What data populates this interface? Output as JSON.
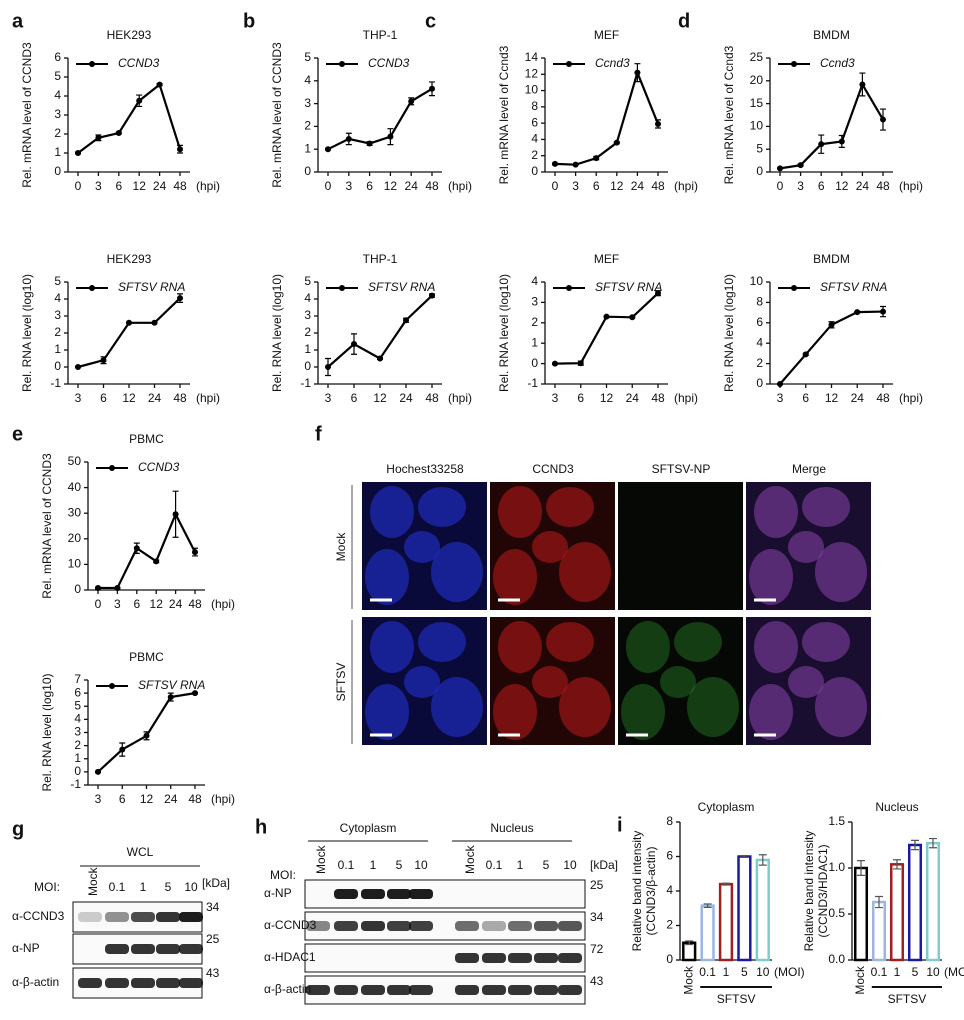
{
  "panel_labels": [
    "a",
    "b",
    "c",
    "d",
    "e",
    "f",
    "g",
    "h",
    "i"
  ],
  "chart_data": [
    {
      "type": "line",
      "title": "HEK293",
      "ylabel": "Rel. mRNA level of CCND3",
      "xlabel": "(hpi)",
      "categories": [
        "0",
        "3",
        "6",
        "12",
        "24",
        "48"
      ],
      "series": [
        {
          "name": "CCND3",
          "color": "#000000",
          "values": [
            1,
            1.8,
            2.05,
            3.75,
            4.6,
            1.2
          ],
          "errors": [
            0.05,
            0.15,
            0.05,
            0.3,
            0.05,
            0.2
          ]
        }
      ],
      "ylim": [
        0,
        6
      ],
      "yticks": [
        0,
        1,
        2,
        3,
        4,
        5,
        6
      ]
    },
    {
      "type": "line",
      "title": "HEK293",
      "ylabel": "Rel. RNA level (log10)",
      "xlabel": "(hpi)",
      "categories": [
        "3",
        "6",
        "12",
        "24",
        "48"
      ],
      "series": [
        {
          "name": "SFTSV RNA",
          "color": "#000000",
          "values": [
            0,
            0.4,
            2.6,
            2.6,
            4.05
          ],
          "errors": [
            0.03,
            0.2,
            0.03,
            0.03,
            0.25
          ]
        }
      ],
      "ylim": [
        -1,
        5
      ],
      "yticks": [
        -1,
        0,
        1,
        2,
        3,
        4,
        5
      ]
    },
    {
      "type": "line",
      "title": "THP-1",
      "ylabel": "Rel. mRNA level of CCND3",
      "xlabel": "(hpi)",
      "categories": [
        "0",
        "3",
        "6",
        "12",
        "24",
        "48"
      ],
      "series": [
        {
          "name": "CCND3",
          "color": "#000000",
          "values": [
            1,
            1.45,
            1.25,
            1.55,
            3.1,
            3.65
          ],
          "errors": [
            0.03,
            0.25,
            0.08,
            0.35,
            0.15,
            0.3
          ]
        }
      ],
      "ylim": [
        0,
        5
      ],
      "yticks": [
        0,
        1,
        2,
        3,
        4,
        5
      ]
    },
    {
      "type": "line",
      "title": "THP-1",
      "ylabel": "Rel. RNA level (log10)",
      "xlabel": "(hpi)",
      "categories": [
        "3",
        "6",
        "12",
        "24",
        "48"
      ],
      "series": [
        {
          "name": "SFTSV RNA",
          "color": "#000000",
          "values": [
            0,
            1.35,
            0.5,
            2.75,
            4.2
          ],
          "errors": [
            0.5,
            0.6,
            0.05,
            0.12,
            0.1
          ]
        }
      ],
      "ylim": [
        -1,
        5
      ],
      "yticks": [
        -1,
        0,
        1,
        2,
        3,
        4,
        5
      ]
    },
    {
      "type": "line",
      "title": "MEF",
      "ylabel": "Rel. mRNA level of Ccnd3",
      "xlabel": "(hpi)",
      "categories": [
        "0",
        "3",
        "6",
        "12",
        "24",
        "48"
      ],
      "series": [
        {
          "name": "Ccnd3",
          "color": "#000000",
          "values": [
            1,
            0.9,
            1.7,
            3.6,
            12.2,
            5.9
          ],
          "errors": [
            0.1,
            0.05,
            0.2,
            0.1,
            1.1,
            0.5
          ]
        }
      ],
      "ylim": [
        0,
        14
      ],
      "yticks": [
        0,
        2,
        4,
        6,
        8,
        10,
        12,
        14
      ]
    },
    {
      "type": "line",
      "title": "MEF",
      "ylabel": "Rel. RNA level (log10)",
      "xlabel": "(hpi)",
      "categories": [
        "3",
        "6",
        "12",
        "24",
        "48"
      ],
      "series": [
        {
          "name": "SFTSV RNA",
          "color": "#000000",
          "values": [
            0,
            0.02,
            2.3,
            2.27,
            3.45
          ],
          "errors": [
            0.02,
            0.1,
            0.02,
            0.02,
            0.12
          ]
        }
      ],
      "ylim": [
        -1,
        4
      ],
      "yticks": [
        -1,
        0,
        1,
        2,
        3,
        4
      ]
    },
    {
      "type": "line",
      "title": "BMDM",
      "ylabel": "Rel. mRNA level of Ccnd3",
      "xlabel": "(hpi)",
      "categories": [
        "0",
        "3",
        "6",
        "12",
        "24",
        "48"
      ],
      "series": [
        {
          "name": "Ccnd3",
          "color": "#000000",
          "values": [
            0.8,
            1.5,
            6.1,
            6.7,
            19.2,
            11.5
          ],
          "errors": [
            0.1,
            0.2,
            2,
            1.3,
            2.5,
            2.3
          ]
        }
      ],
      "ylim": [
        0,
        25
      ],
      "yticks": [
        0,
        5,
        10,
        15,
        20,
        25
      ]
    },
    {
      "type": "line",
      "title": "BMDM",
      "ylabel": "Rel. RNA level (log10)",
      "xlabel": "(hpi)",
      "categories": [
        "3",
        "6",
        "12",
        "24",
        "48"
      ],
      "series": [
        {
          "name": "SFTSV RNA",
          "color": "#000000",
          "values": [
            0,
            2.9,
            5.8,
            7.05,
            7.1
          ],
          "errors": [
            0.05,
            0.1,
            0.3,
            0.05,
            0.5
          ]
        }
      ],
      "ylim": [
        0,
        10
      ],
      "yticks": [
        0,
        2,
        4,
        6,
        8,
        10
      ]
    },
    {
      "type": "line",
      "title": "PBMC",
      "ylabel": "Rel. mRNA level of CCND3",
      "xlabel": "(hpi)",
      "categories": [
        "0",
        "3",
        "6",
        "12",
        "24",
        "48"
      ],
      "series": [
        {
          "name": "CCND3",
          "color": "#000000",
          "values": [
            0.8,
            0.8,
            16.3,
            11.2,
            29.6,
            14.8
          ],
          "errors": [
            0.3,
            0.3,
            2,
            0.5,
            9,
            1.5
          ]
        }
      ],
      "ylim": [
        0,
        50
      ],
      "yticks": [
        0,
        10,
        20,
        30,
        40,
        50
      ]
    },
    {
      "type": "line",
      "title": "PBMC",
      "ylabel": "Rel. RNA level (log10)",
      "xlabel": "(hpi)",
      "categories": [
        "3",
        "6",
        "12",
        "24",
        "48"
      ],
      "series": [
        {
          "name": "SFTSV RNA",
          "color": "#000000",
          "values": [
            0,
            1.7,
            2.75,
            5.7,
            6.0
          ],
          "errors": [
            0.05,
            0.5,
            0.3,
            0.3,
            0.05
          ]
        }
      ],
      "ylim": [
        -1,
        7
      ],
      "yticks": [
        -1,
        0,
        1,
        2,
        3,
        4,
        5,
        6,
        7
      ]
    },
    {
      "type": "bar",
      "title": "Cytoplasm",
      "ylabel": [
        "Relative band intensity",
        "(CCND3/β-actin)"
      ],
      "xlabel": "(MOI)",
      "group_label": "SFTSV",
      "categories": [
        "Mock",
        "0.1",
        "1",
        "5",
        "10"
      ],
      "values": [
        1,
        3.15,
        4.4,
        6.0,
        5.8
      ],
      "errors": [
        0.1,
        0.1,
        0.05,
        0.05,
        0.3
      ],
      "colors": [
        "#000000",
        "#9bb7e0",
        "#a02020",
        "#1a1aa0",
        "#80cccc"
      ],
      "ylim": [
        0,
        8
      ],
      "yticks": [
        0,
        2,
        4,
        6,
        8
      ]
    },
    {
      "type": "bar",
      "title": "Nucleus",
      "ylabel": [
        "Relative band intensity",
        "(CCND3/HDAC1)"
      ],
      "xlabel": "(MO",
      "group_label": "SFTSV",
      "categories": [
        "Mock",
        "0.1",
        "1",
        "5",
        "10"
      ],
      "values": [
        1,
        0.63,
        1.04,
        1.25,
        1.27
      ],
      "errors": [
        0.08,
        0.06,
        0.05,
        0.05,
        0.05
      ],
      "colors": [
        "#000000",
        "#9bb7e0",
        "#a02020",
        "#1a1aa0",
        "#80cccc"
      ],
      "ylim": [
        0,
        1.5
      ],
      "yticks": [
        {
          "value": 0,
          "label": "0.0"
        },
        0.5,
        {
          "value": 1,
          "label": "1.0"
        },
        1.5
      ]
    }
  ],
  "microscopy": {
    "columns": [
      "Hochest33258",
      "CCND3",
      "SFTSV-NP",
      "Merge"
    ],
    "rows": [
      "Mock",
      "SFTSV"
    ]
  },
  "blot_g": {
    "title": "WCL",
    "moi_label": "MOI:",
    "kda_label": "[kDa]",
    "lanes": [
      "Mock",
      "0.1",
      "1",
      "5",
      "10"
    ],
    "rows": [
      {
        "label": "α-CCND3",
        "kda": 34
      },
      {
        "label": "α-NP",
        "kda": 25
      },
      {
        "label": "α-β-actin",
        "kda": 43
      }
    ]
  },
  "blot_h": {
    "groups": [
      "Cytoplasm",
      "Nucleus"
    ],
    "moi_label": "MOI:",
    "kda_label": "[kDa]",
    "lanes": [
      "Mock",
      "0.1",
      "1",
      "5",
      "10",
      "Mock",
      "0.1",
      "1",
      "5",
      "10"
    ],
    "rows": [
      {
        "label": "α-NP",
        "kda": 25
      },
      {
        "label": "α-CCND3",
        "kda": 34
      },
      {
        "label": "α-HDAC1",
        "kda": 72
      },
      {
        "label": "α-β-actin",
        "kda": 43
      }
    ]
  }
}
